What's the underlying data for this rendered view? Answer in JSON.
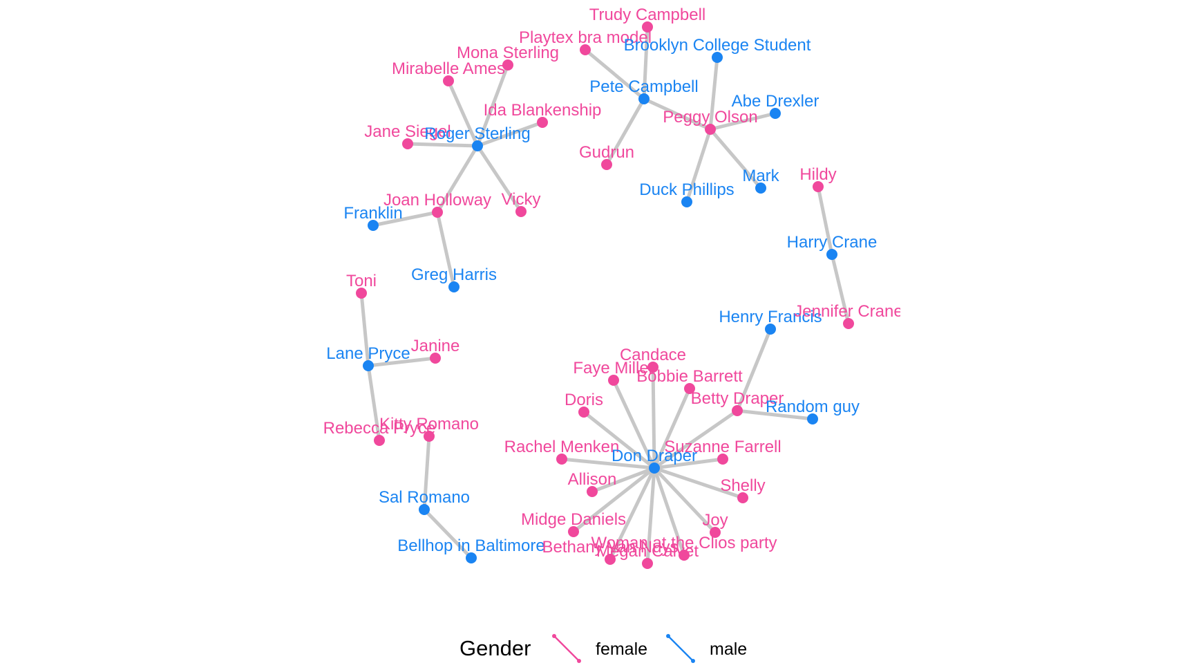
{
  "colors": {
    "female": "#f0489c",
    "male": "#1a84f2",
    "edge": "#c7c7c7"
  },
  "legend": {
    "title": "Gender",
    "items": [
      {
        "key": "female",
        "label": "female"
      },
      {
        "key": "male",
        "label": "male"
      }
    ]
  },
  "nodes": [
    {
      "id": "trudy",
      "label": "Trudy Campbell",
      "gender": "female"
    },
    {
      "id": "playtex",
      "label": "Playtex bra model",
      "gender": "female"
    },
    {
      "id": "brooklyn",
      "label": "Brooklyn College Student",
      "gender": "male"
    },
    {
      "id": "mona",
      "label": "Mona Sterling",
      "gender": "female"
    },
    {
      "id": "mirabelle",
      "label": "Mirabelle Ames",
      "gender": "female"
    },
    {
      "id": "pete",
      "label": "Pete Campbell",
      "gender": "male"
    },
    {
      "id": "abe",
      "label": "Abe Drexler",
      "gender": "male"
    },
    {
      "id": "ida",
      "label": "Ida Blankenship",
      "gender": "female"
    },
    {
      "id": "peggy",
      "label": "Peggy Olson",
      "gender": "female"
    },
    {
      "id": "jane",
      "label": "Jane Siegel",
      "gender": "female"
    },
    {
      "id": "roger",
      "label": "Roger Sterling",
      "gender": "male"
    },
    {
      "id": "gudrun",
      "label": "Gudrun",
      "gender": "female"
    },
    {
      "id": "mark",
      "label": "Mark",
      "gender": "male"
    },
    {
      "id": "hildy",
      "label": "Hildy",
      "gender": "female"
    },
    {
      "id": "duck",
      "label": "Duck Phillips",
      "gender": "male"
    },
    {
      "id": "joan",
      "label": "Joan Holloway",
      "gender": "female"
    },
    {
      "id": "vicky",
      "label": "Vicky",
      "gender": "female"
    },
    {
      "id": "franklin",
      "label": "Franklin",
      "gender": "male"
    },
    {
      "id": "harry",
      "label": "Harry Crane",
      "gender": "male"
    },
    {
      "id": "greg",
      "label": "Greg Harris",
      "gender": "male"
    },
    {
      "id": "toni",
      "label": "Toni",
      "gender": "female"
    },
    {
      "id": "henry",
      "label": "Henry Francis",
      "gender": "male"
    },
    {
      "id": "jennifer",
      "label": "Jennifer Crane",
      "gender": "female"
    },
    {
      "id": "janine",
      "label": "Janine",
      "gender": "female"
    },
    {
      "id": "lane",
      "label": "Lane Pryce",
      "gender": "male"
    },
    {
      "id": "candace",
      "label": "Candace",
      "gender": "female"
    },
    {
      "id": "faye",
      "label": "Faye Miller",
      "gender": "female"
    },
    {
      "id": "bobbie",
      "label": "Bobbie Barrett",
      "gender": "female"
    },
    {
      "id": "betty",
      "label": "Betty Draper",
      "gender": "female"
    },
    {
      "id": "doris",
      "label": "Doris",
      "gender": "female"
    },
    {
      "id": "random",
      "label": "Random guy",
      "gender": "male"
    },
    {
      "id": "rebecca",
      "label": "Rebecca Pryce",
      "gender": "female"
    },
    {
      "id": "kitty",
      "label": "Kitty Romano",
      "gender": "female"
    },
    {
      "id": "rachel",
      "label": "Rachel Menken",
      "gender": "female"
    },
    {
      "id": "suzanne",
      "label": "Suzanne Farrell",
      "gender": "female"
    },
    {
      "id": "don",
      "label": "Don Draper",
      "gender": "male"
    },
    {
      "id": "allison",
      "label": "Allison",
      "gender": "female"
    },
    {
      "id": "shelly",
      "label": "Shelly",
      "gender": "female"
    },
    {
      "id": "sal",
      "label": "Sal Romano",
      "gender": "male"
    },
    {
      "id": "midge",
      "label": "Midge Daniels",
      "gender": "female"
    },
    {
      "id": "joy",
      "label": "Joy",
      "gender": "female"
    },
    {
      "id": "woman_clios",
      "label": "Woman at the Clios party",
      "gender": "female"
    },
    {
      "id": "bellhop",
      "label": "Bellhop in Baltimore",
      "gender": "male"
    },
    {
      "id": "bethany",
      "label": "Bethany Van Nuys",
      "gender": "female"
    },
    {
      "id": "megan",
      "label": "Megan Calvet",
      "gender": "female"
    }
  ],
  "edges": [
    [
      "trudy",
      "pete"
    ],
    [
      "playtex",
      "pete"
    ],
    [
      "pete",
      "gudrun"
    ],
    [
      "pete",
      "peggy"
    ],
    [
      "peggy",
      "brooklyn"
    ],
    [
      "peggy",
      "abe"
    ],
    [
      "peggy",
      "mark"
    ],
    [
      "peggy",
      "duck"
    ],
    [
      "roger",
      "mona"
    ],
    [
      "roger",
      "mirabelle"
    ],
    [
      "roger",
      "ida"
    ],
    [
      "roger",
      "jane"
    ],
    [
      "roger",
      "vicky"
    ],
    [
      "roger",
      "joan"
    ],
    [
      "joan",
      "franklin"
    ],
    [
      "joan",
      "greg"
    ],
    [
      "hildy",
      "harry"
    ],
    [
      "harry",
      "jennifer"
    ],
    [
      "toni",
      "lane"
    ],
    [
      "lane",
      "janine"
    ],
    [
      "lane",
      "rebecca"
    ],
    [
      "kitty",
      "sal"
    ],
    [
      "sal",
      "bellhop"
    ],
    [
      "henry",
      "betty"
    ],
    [
      "betty",
      "random"
    ],
    [
      "betty",
      "don"
    ],
    [
      "don",
      "candace"
    ],
    [
      "don",
      "faye"
    ],
    [
      "don",
      "bobbie"
    ],
    [
      "don",
      "doris"
    ],
    [
      "don",
      "rachel"
    ],
    [
      "don",
      "suzanne"
    ],
    [
      "don",
      "allison"
    ],
    [
      "don",
      "shelly"
    ],
    [
      "don",
      "midge"
    ],
    [
      "don",
      "joy"
    ],
    [
      "don",
      "woman_clios"
    ],
    [
      "don",
      "bethany"
    ],
    [
      "don",
      "megan"
    ]
  ]
}
